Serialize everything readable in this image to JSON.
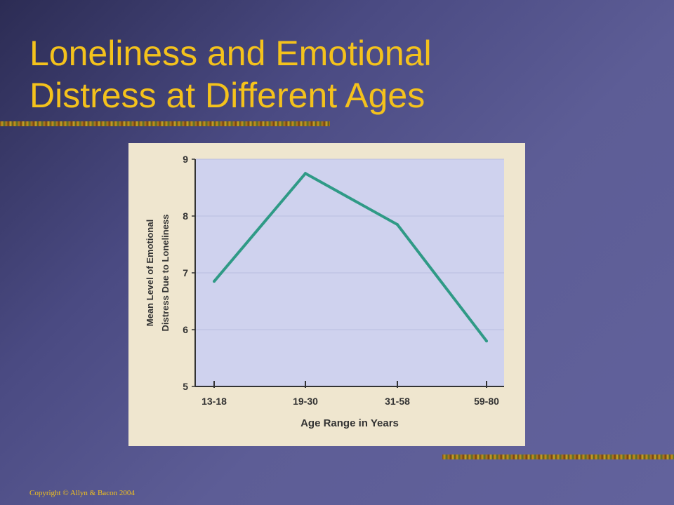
{
  "slide": {
    "title_line1": "Loneliness and Emotional",
    "title_line2": "Distress at Different Ages",
    "copyright": "Copyright © Allyn & Bacon 2004"
  },
  "colors": {
    "background": "#5d5d96",
    "title": "#f4c21c",
    "figure_paper": "#efe6cf",
    "plot_area": "#cfd2ee",
    "line": "#2f9a86"
  },
  "chart_data": {
    "type": "line",
    "categories": [
      "13-18",
      "19-30",
      "31-58",
      "59-80"
    ],
    "series": [
      {
        "values": [
          6.85,
          8.75,
          7.85,
          5.8
        ]
      }
    ],
    "title": "",
    "xlabel": "Age Range in Years",
    "ylabel_line1": "Mean Level of Emotional",
    "ylabel_line2": "Distress Due to Loneliness",
    "ylim": [
      5,
      9
    ],
    "yticks": [
      5,
      6,
      7,
      8,
      9
    ],
    "grid": true,
    "legend": "none"
  }
}
